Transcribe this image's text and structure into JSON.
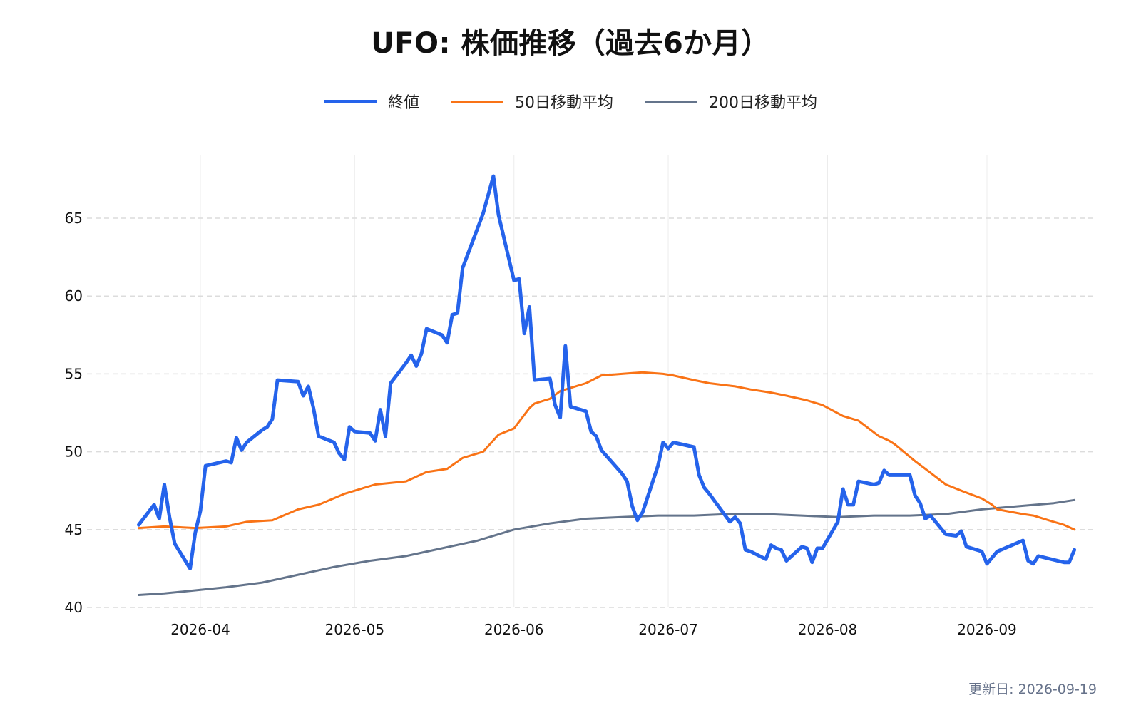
{
  "chart_data": {
    "type": "line",
    "title": "UFO: 株価推移（過去6か月）",
    "xlabel": "",
    "ylabel": "",
    "x_range": [
      "2026-03-20",
      "2026-09-18"
    ],
    "ylim": [
      40,
      68
    ],
    "yticks": [
      40,
      45,
      50,
      55,
      60,
      65
    ],
    "ytick_labels": [
      "40",
      "45",
      "50",
      "55",
      "60",
      "65"
    ],
    "xticks": [
      "2026-04-01",
      "2026-05-01",
      "2026-06-01",
      "2026-07-01",
      "2026-08-01",
      "2026-09-01"
    ],
    "xtick_labels": [
      "2026-04",
      "2026-05",
      "2026-06",
      "2026-07",
      "2026-08",
      "2026-09"
    ],
    "grid": "horizontal dashed, vertical light",
    "legend_position": "top-center",
    "series": [
      {
        "name": "終値",
        "color": "#2563eb",
        "points": [
          [
            "2026-03-20",
            45.3
          ],
          [
            "2026-03-23",
            46.6
          ],
          [
            "2026-03-24",
            45.7
          ],
          [
            "2026-03-25",
            47.9
          ],
          [
            "2026-03-26",
            45.8
          ],
          [
            "2026-03-27",
            44.1
          ],
          [
            "2026-03-30",
            42.5
          ],
          [
            "2026-03-31",
            44.8
          ],
          [
            "2026-04-01",
            46.2
          ],
          [
            "2026-04-02",
            49.1
          ],
          [
            "2026-04-06",
            49.4
          ],
          [
            "2026-04-07",
            49.3
          ],
          [
            "2026-04-08",
            50.9
          ],
          [
            "2026-04-09",
            50.1
          ],
          [
            "2026-04-10",
            50.6
          ],
          [
            "2026-04-13",
            51.4
          ],
          [
            "2026-04-14",
            51.6
          ],
          [
            "2026-04-15",
            52.1
          ],
          [
            "2026-04-16",
            54.6
          ],
          [
            "2026-04-20",
            54.5
          ],
          [
            "2026-04-21",
            53.6
          ],
          [
            "2026-04-22",
            54.2
          ],
          [
            "2026-04-23",
            52.8
          ],
          [
            "2026-04-24",
            51.0
          ],
          [
            "2026-04-27",
            50.6
          ],
          [
            "2026-04-28",
            49.9
          ],
          [
            "2026-04-29",
            49.5
          ],
          [
            "2026-04-30",
            51.6
          ],
          [
            "2026-05-01",
            51.3
          ],
          [
            "2026-05-04",
            51.2
          ],
          [
            "2026-05-05",
            50.7
          ],
          [
            "2026-05-06",
            52.7
          ],
          [
            "2026-05-07",
            51.0
          ],
          [
            "2026-05-08",
            54.4
          ],
          [
            "2026-05-11",
            55.7
          ],
          [
            "2026-05-12",
            56.2
          ],
          [
            "2026-05-13",
            55.5
          ],
          [
            "2026-05-14",
            56.3
          ],
          [
            "2026-05-15",
            57.9
          ],
          [
            "2026-05-18",
            57.5
          ],
          [
            "2026-05-19",
            57.0
          ],
          [
            "2026-05-20",
            58.8
          ],
          [
            "2026-05-21",
            58.9
          ],
          [
            "2026-05-22",
            61.8
          ],
          [
            "2026-05-26",
            65.3
          ],
          [
            "2026-05-28",
            67.7
          ],
          [
            "2026-05-29",
            65.2
          ],
          [
            "2026-06-01",
            61.0
          ],
          [
            "2026-06-02",
            61.1
          ],
          [
            "2026-06-03",
            57.6
          ],
          [
            "2026-06-04",
            59.3
          ],
          [
            "2026-06-05",
            54.6
          ],
          [
            "2026-06-08",
            54.7
          ],
          [
            "2026-06-09",
            53.0
          ],
          [
            "2026-06-10",
            52.2
          ],
          [
            "2026-06-11",
            56.8
          ],
          [
            "2026-06-12",
            52.9
          ],
          [
            "2026-06-15",
            52.6
          ],
          [
            "2026-06-16",
            51.3
          ],
          [
            "2026-06-17",
            51.0
          ],
          [
            "2026-06-18",
            50.1
          ],
          [
            "2026-06-22",
            48.6
          ],
          [
            "2026-06-23",
            48.1
          ],
          [
            "2026-06-24",
            46.5
          ],
          [
            "2026-06-25",
            45.6
          ],
          [
            "2026-06-26",
            46.1
          ],
          [
            "2026-06-29",
            49.1
          ],
          [
            "2026-06-30",
            50.6
          ],
          [
            "2026-07-01",
            50.2
          ],
          [
            "2026-07-02",
            50.6
          ],
          [
            "2026-07-06",
            50.3
          ],
          [
            "2026-07-07",
            48.5
          ],
          [
            "2026-07-08",
            47.7
          ],
          [
            "2026-07-09",
            47.3
          ],
          [
            "2026-07-13",
            45.5
          ],
          [
            "2026-07-14",
            45.8
          ],
          [
            "2026-07-15",
            45.4
          ],
          [
            "2026-07-16",
            43.7
          ],
          [
            "2026-07-17",
            43.6
          ],
          [
            "2026-07-20",
            43.1
          ],
          [
            "2026-07-21",
            44.0
          ],
          [
            "2026-07-22",
            43.8
          ],
          [
            "2026-07-23",
            43.7
          ],
          [
            "2026-07-24",
            43.0
          ],
          [
            "2026-07-27",
            43.9
          ],
          [
            "2026-07-28",
            43.8
          ],
          [
            "2026-07-29",
            42.9
          ],
          [
            "2026-07-30",
            43.8
          ],
          [
            "2026-07-31",
            43.8
          ],
          [
            "2026-08-03",
            45.5
          ],
          [
            "2026-08-04",
            47.6
          ],
          [
            "2026-08-05",
            46.6
          ],
          [
            "2026-08-06",
            46.6
          ],
          [
            "2026-08-07",
            48.1
          ],
          [
            "2026-08-10",
            47.9
          ],
          [
            "2026-08-11",
            48.0
          ],
          [
            "2026-08-12",
            48.8
          ],
          [
            "2026-08-13",
            48.5
          ],
          [
            "2026-08-17",
            48.5
          ],
          [
            "2026-08-18",
            47.2
          ],
          [
            "2026-08-19",
            46.7
          ],
          [
            "2026-08-20",
            45.7
          ],
          [
            "2026-08-21",
            45.9
          ],
          [
            "2026-08-24",
            44.7
          ],
          [
            "2026-08-26",
            44.6
          ],
          [
            "2026-08-27",
            44.9
          ],
          [
            "2026-08-28",
            43.9
          ],
          [
            "2026-08-31",
            43.6
          ],
          [
            "2026-09-01",
            42.8
          ],
          [
            "2026-09-02",
            43.2
          ],
          [
            "2026-09-03",
            43.6
          ],
          [
            "2026-09-08",
            44.3
          ],
          [
            "2026-09-09",
            43.0
          ],
          [
            "2026-09-10",
            42.8
          ],
          [
            "2026-09-11",
            43.3
          ],
          [
            "2026-09-16",
            42.9
          ],
          [
            "2026-09-17",
            42.9
          ],
          [
            "2026-09-18",
            43.7
          ]
        ]
      },
      {
        "name": "50日移動平均",
        "color": "#f97316",
        "points": [
          [
            "2026-03-20",
            45.1
          ],
          [
            "2026-03-25",
            45.2
          ],
          [
            "2026-03-31",
            45.1
          ],
          [
            "2026-04-06",
            45.2
          ],
          [
            "2026-04-10",
            45.5
          ],
          [
            "2026-04-15",
            45.6
          ],
          [
            "2026-04-20",
            46.3
          ],
          [
            "2026-04-24",
            46.6
          ],
          [
            "2026-04-29",
            47.3
          ],
          [
            "2026-05-05",
            47.9
          ],
          [
            "2026-05-11",
            48.1
          ],
          [
            "2026-05-15",
            48.7
          ],
          [
            "2026-05-19",
            48.9
          ],
          [
            "2026-05-22",
            49.6
          ],
          [
            "2026-05-26",
            50.0
          ],
          [
            "2026-05-29",
            51.1
          ],
          [
            "2026-06-01",
            51.5
          ],
          [
            "2026-06-04",
            52.8
          ],
          [
            "2026-06-05",
            53.1
          ],
          [
            "2026-06-08",
            53.4
          ],
          [
            "2026-06-10",
            53.9
          ],
          [
            "2026-06-12",
            54.1
          ],
          [
            "2026-06-15",
            54.4
          ],
          [
            "2026-06-18",
            54.9
          ],
          [
            "2026-06-22",
            55.0
          ],
          [
            "2026-06-26",
            55.1
          ],
          [
            "2026-06-30",
            55.0
          ],
          [
            "2026-07-02",
            54.9
          ],
          [
            "2026-07-06",
            54.6
          ],
          [
            "2026-07-09",
            54.4
          ],
          [
            "2026-07-14",
            54.2
          ],
          [
            "2026-07-17",
            54.0
          ],
          [
            "2026-07-21",
            53.8
          ],
          [
            "2026-07-24",
            53.6
          ],
          [
            "2026-07-28",
            53.3
          ],
          [
            "2026-07-31",
            53.0
          ],
          [
            "2026-08-04",
            52.3
          ],
          [
            "2026-08-07",
            52.0
          ],
          [
            "2026-08-11",
            51.0
          ],
          [
            "2026-08-13",
            50.7
          ],
          [
            "2026-08-14",
            50.5
          ],
          [
            "2026-08-18",
            49.4
          ],
          [
            "2026-08-20",
            48.9
          ],
          [
            "2026-08-24",
            47.9
          ],
          [
            "2026-08-27",
            47.5
          ],
          [
            "2026-08-31",
            47.0
          ],
          [
            "2026-09-02",
            46.6
          ],
          [
            "2026-09-03",
            46.3
          ],
          [
            "2026-09-08",
            46.0
          ],
          [
            "2026-09-10",
            45.9
          ],
          [
            "2026-09-14",
            45.5
          ],
          [
            "2026-09-16",
            45.3
          ],
          [
            "2026-09-18",
            45.0
          ]
        ]
      },
      {
        "name": "200日移動平均",
        "color": "#64748b",
        "points": [
          [
            "2026-03-20",
            40.8
          ],
          [
            "2026-03-25",
            40.9
          ],
          [
            "2026-03-31",
            41.1
          ],
          [
            "2026-04-06",
            41.3
          ],
          [
            "2026-04-13",
            41.6
          ],
          [
            "2026-04-20",
            42.1
          ],
          [
            "2026-04-27",
            42.6
          ],
          [
            "2026-05-04",
            43.0
          ],
          [
            "2026-05-11",
            43.3
          ],
          [
            "2026-05-18",
            43.8
          ],
          [
            "2026-05-25",
            44.3
          ],
          [
            "2026-06-01",
            45.0
          ],
          [
            "2026-06-08",
            45.4
          ],
          [
            "2026-06-15",
            45.7
          ],
          [
            "2026-06-22",
            45.8
          ],
          [
            "2026-06-29",
            45.9
          ],
          [
            "2026-07-06",
            45.9
          ],
          [
            "2026-07-13",
            46.0
          ],
          [
            "2026-07-20",
            46.0
          ],
          [
            "2026-07-27",
            45.9
          ],
          [
            "2026-08-03",
            45.8
          ],
          [
            "2026-08-10",
            45.9
          ],
          [
            "2026-08-17",
            45.9
          ],
          [
            "2026-08-24",
            46.0
          ],
          [
            "2026-08-31",
            46.3
          ],
          [
            "2026-09-07",
            46.5
          ],
          [
            "2026-09-14",
            46.7
          ],
          [
            "2026-09-18",
            46.9
          ]
        ]
      }
    ]
  },
  "footer": {
    "updated": "更新日: 2026-09-19"
  }
}
